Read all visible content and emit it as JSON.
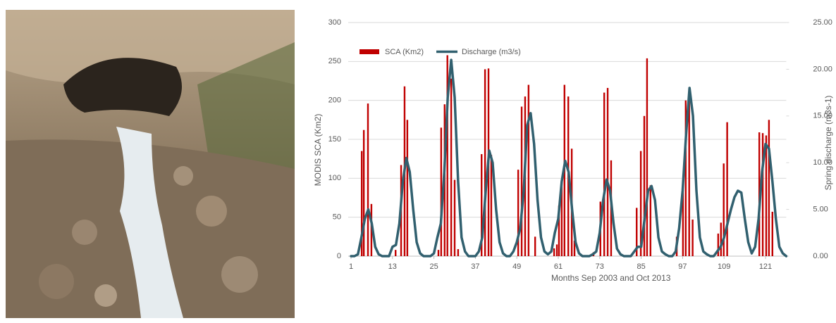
{
  "chart_data": {
    "type": "bar_line",
    "xlabel": "Months Sep 2003  and Oct 2013",
    "ylabel": "MODIS SCA (Km2)",
    "y2label": "Spring discharge (m3s-1)",
    "xlim": [
      1,
      127
    ],
    "xticks": [
      1,
      13,
      25,
      37,
      49,
      61,
      73,
      85,
      97,
      109,
      121
    ],
    "ylim": [
      0,
      300
    ],
    "yticks": [
      0,
      50,
      100,
      150,
      200,
      250,
      300
    ],
    "y2lim": [
      0,
      25
    ],
    "y2ticks": [
      {
        "value": 0,
        "label": "0.00"
      },
      {
        "value": 5,
        "label": "5.00"
      },
      {
        "value": 10,
        "label": "10.00"
      },
      {
        "value": 15,
        "label": "15.00"
      },
      {
        "value": 20,
        "label": "20.00"
      },
      {
        "value": 25,
        "label": "25.00"
      }
    ],
    "grid": true,
    "legend": "upper left",
    "series": [
      {
        "name": "SCA (Km2)",
        "type": "bar",
        "color": "#c00000",
        "x": [
          4.1,
          4.7,
          5.9,
          6.9,
          13.9,
          15.5,
          16.5,
          17.3,
          26.3,
          27.1,
          28.1,
          28.9,
          30,
          31,
          32,
          38.8,
          39.8,
          40.8,
          41.6,
          49.4,
          50.4,
          51.4,
          52.4,
          54.3,
          59.8,
          60.6,
          61.2,
          62,
          62.8,
          63.9,
          64.9,
          65.7,
          71.2,
          73.2,
          74.3,
          75.3,
          76.3,
          83.7,
          84.9,
          85.9,
          86.7,
          87.7,
          95.3,
          97.1,
          97.9,
          98.9,
          99.9,
          107.3,
          108.1,
          108.9,
          109.9,
          119.2,
          120.2,
          121.2,
          122,
          123
        ],
        "values": [
          135,
          162,
          196,
          67,
          8,
          117,
          218,
          175,
          8,
          165,
          195,
          258,
          228,
          98,
          9,
          131,
          240,
          241,
          130,
          111,
          192,
          205,
          220,
          25,
          10,
          15,
          65,
          95,
          220,
          205,
          138,
          20,
          5,
          70,
          210,
          216,
          123,
          62,
          135,
          180,
          254,
          91,
          25,
          85,
          200,
          210,
          47,
          29,
          43,
          119,
          172,
          159,
          158,
          155,
          175,
          57
        ]
      },
      {
        "name": "Discharge (m3/s)",
        "type": "line",
        "axis": "y2",
        "color": "#31606f",
        "x": [
          1,
          2,
          3,
          4,
          5,
          6,
          7,
          8,
          9,
          10,
          11,
          12,
          13,
          14,
          15,
          16,
          17,
          18,
          19,
          20,
          21,
          22,
          23,
          24,
          25,
          26,
          27,
          28,
          29,
          30,
          31,
          32,
          33,
          34,
          35,
          36,
          37,
          38,
          39,
          40,
          41,
          42,
          43,
          44,
          45,
          46,
          47,
          48,
          49,
          50,
          51,
          52,
          53,
          54,
          55,
          56,
          57,
          58,
          59,
          60,
          61,
          62,
          63,
          64,
          65,
          66,
          67,
          68,
          69,
          70,
          71,
          72,
          73,
          74,
          75,
          76,
          77,
          78,
          79,
          80,
          81,
          82,
          83,
          84,
          85,
          86,
          87,
          88,
          89,
          90,
          91,
          92,
          93,
          94,
          95,
          96,
          97,
          98,
          99,
          100,
          101,
          102,
          103,
          104,
          105,
          106,
          107,
          108,
          109,
          110,
          111,
          112,
          113,
          114,
          115,
          116,
          117,
          118,
          119,
          120,
          121,
          122,
          123,
          124,
          125,
          126,
          127
        ],
        "values": [
          0,
          0,
          0.2,
          2,
          4,
          5,
          3.5,
          1,
          0.2,
          0,
          0,
          0,
          1,
          1.2,
          3.5,
          8,
          10.5,
          9,
          5,
          1.5,
          0.3,
          0,
          0,
          0,
          0.3,
          2,
          3.5,
          9,
          17,
          21,
          17,
          8,
          2,
          0.5,
          0,
          0,
          0,
          0.5,
          2,
          7,
          11.3,
          10,
          5,
          1.5,
          0.3,
          0,
          0,
          0.5,
          1.5,
          3,
          7,
          14,
          15.3,
          12,
          6,
          2,
          0.5,
          0.2,
          0.5,
          2.5,
          4,
          8,
          10.2,
          9,
          5,
          1.5,
          0.3,
          0,
          0,
          0,
          0.2,
          0.5,
          2.5,
          6,
          8.2,
          7,
          3.5,
          0.8,
          0.2,
          0,
          0,
          0,
          0.5,
          1,
          1,
          4,
          7,
          7.5,
          6,
          2,
          0.5,
          0.2,
          0,
          0,
          0.5,
          3,
          7,
          13,
          18,
          15,
          7,
          2,
          0.5,
          0.2,
          0,
          0,
          0.5,
          1,
          2,
          3.5,
          5,
          6.3,
          7,
          6.8,
          4,
          1.5,
          0.3,
          1,
          4,
          9,
          12,
          11.5,
          8,
          4,
          1,
          0.3,
          0
        ]
      }
    ]
  }
}
